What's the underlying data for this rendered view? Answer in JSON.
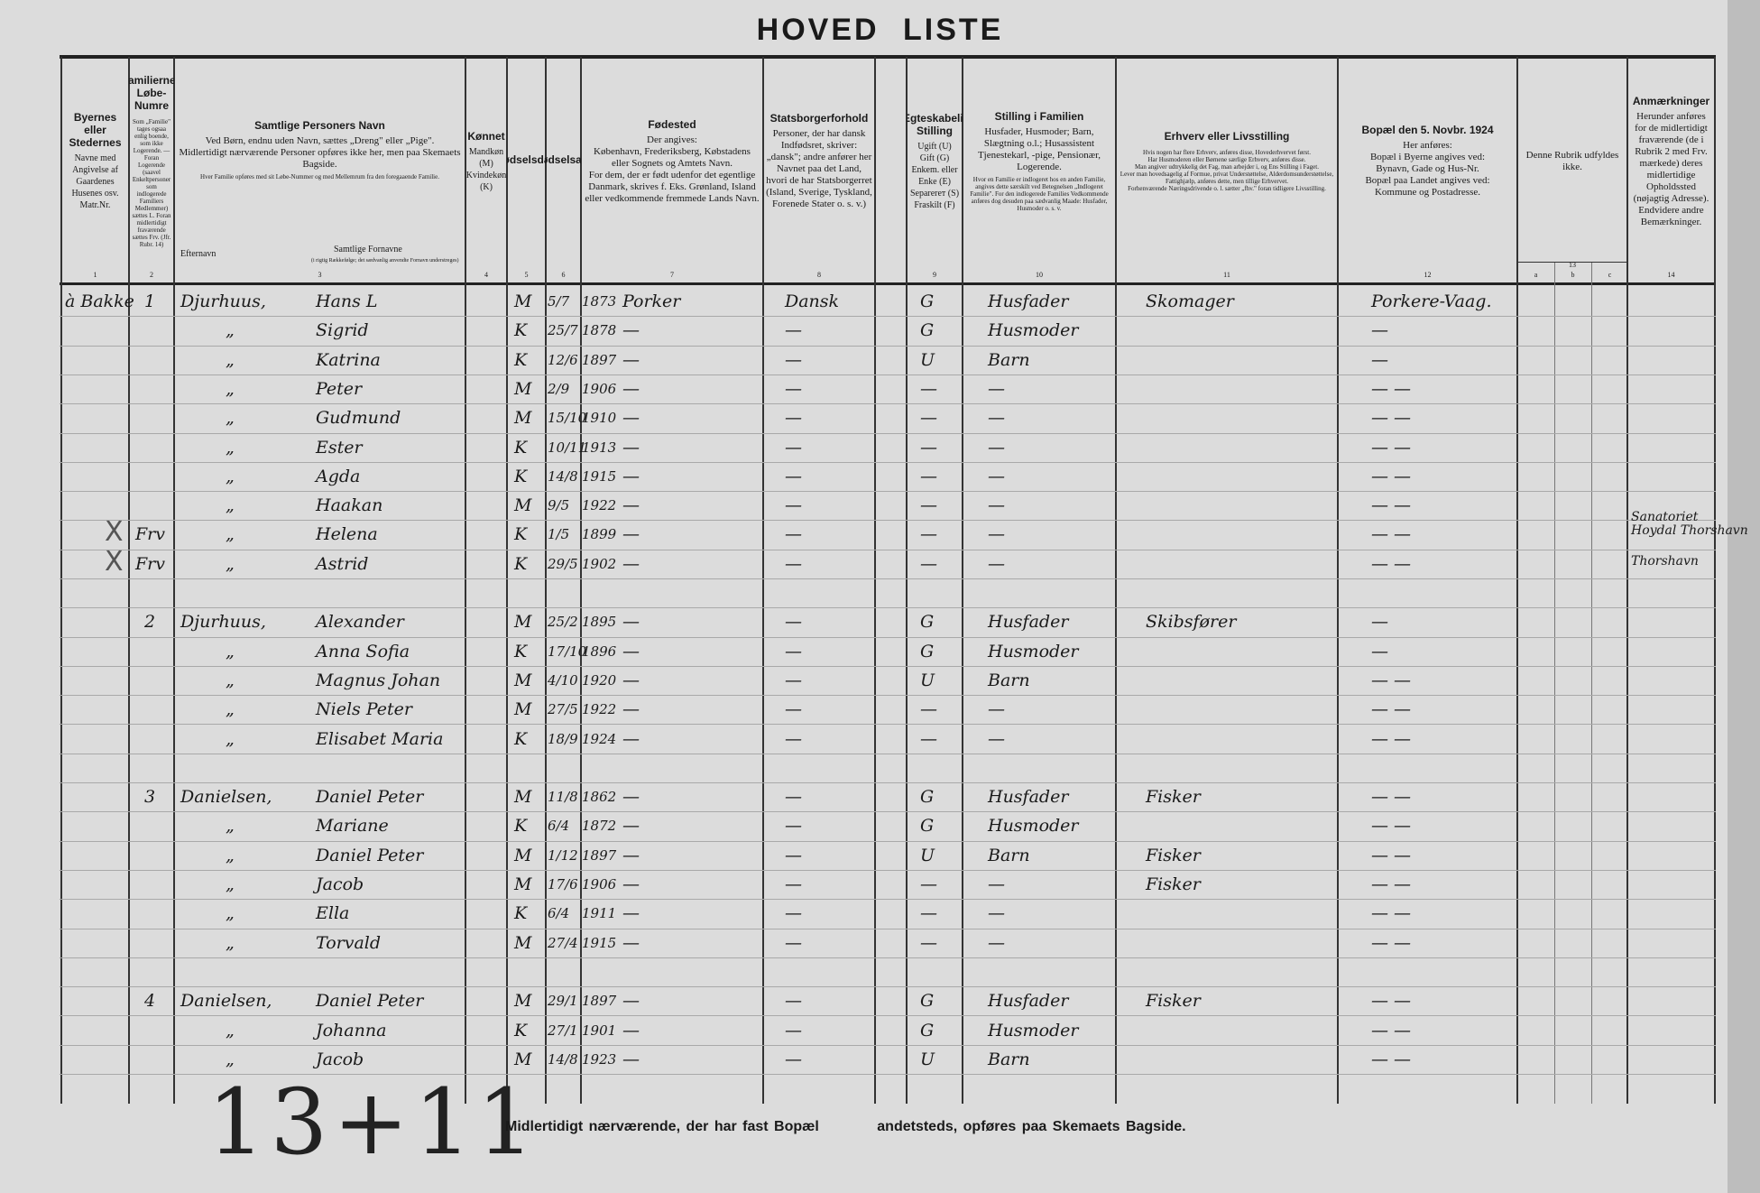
{
  "title": "HOVED LISTE",
  "columns": [
    {
      "num": "1",
      "title": "Byernes eller Stedernes",
      "body": "Navne med Angivelse af Gaardenes Husenes osv.\nMatr.Nr.",
      "small": ""
    },
    {
      "num": "2",
      "title": "Familiernes Løbe-Numre",
      "body": "",
      "small": "Som „Familie\" tages ogsaa enlig boende, som ikke Logerende. — Foran Logerende (saavel Enkeltpersoner som indlogerede Familiers Medlemmer) sættes L. Foran midlertidigt fraværende sættes Frv. (Jfr. Rubr. 14)"
    },
    {
      "num": "3",
      "title": "Samtlige Personers Navn",
      "body": "Ved Børn, endnu uden Navn, sættes „Dreng\" eller „Pige\".\nMidlertidigt nærværende Personer opføres ikke her, men paa Skemaets Bagside.",
      "small": "Hver Familie opføres med sit Løbe-Nummer og med Mellemrum fra den foregaaende Familie."
    },
    {
      "num": "4",
      "title": "Kønnet",
      "body": "Mandkøn (M)\nKvindekøn (K)",
      "small": ""
    },
    {
      "num": "5",
      "title": "Fødselsdag",
      "body": "",
      "small": ""
    },
    {
      "num": "6",
      "title": "Fødselsaar",
      "body": "",
      "small": ""
    },
    {
      "num": "7",
      "title": "Fødested",
      "body": "Der angives:\nKøbenhavn, Frederiksberg, Købstadens eller Sognets og Amtets Navn.\nFor dem, der er født udenfor det egentlige Danmark, skrives f. Eks. Grønland, Island eller vedkommende fremmede Lands Navn.",
      "small": ""
    },
    {
      "num": "8",
      "title": "Statsborgerforhold",
      "body": "Personer, der har dansk Indfødsret, skriver: „dansk\"; andre anfører her Navnet paa det Land, hvori de har Statsborgerret (Island, Sverige, Tyskland, Forenede Stater o. s. v.)",
      "small": ""
    },
    {
      "num": "",
      "title": "",
      "body": "",
      "small": ""
    },
    {
      "num": "9",
      "title": "Ægteskabelig Stilling",
      "body": "Ugift (U)\nGift (G)\nEnkem. eller Enke (E)\nSeparerет (S)\nFraskilt (F)",
      "small": ""
    },
    {
      "num": "10",
      "title": "Stilling i Familien",
      "body": "Husfader, Husmoder; Barn, Slægtning o.l.; Husassistent Tjenestekarl, -pige, Pensionær, Logerende.",
      "small": "Hvor en Familie er indlogeret hos en anden Familie, angives dette særskilt ved Betegnelsen „Indlogeret Familie\". For den indlogerede Families Vedkommende anføres dog desuden paa sædvanlig Maade: Husfader, Husmoder o. s. v."
    },
    {
      "num": "11",
      "title": "Erhverv eller Livsstilling",
      "body": "",
      "small": "Hvis nogen har flere Erhverv, anføres disse, Hovederhvervet først.\nHar Husmoderen eller Børnene særlige Erhverv, anføres disse.\nMan angiver udtrykkelig det Fag, man arbejder i, og Ens Stilling i Faget.\nLever man hovedsagelig af Formue, privat Understøttelse, Alderdomsunderstøttelse, Fattighjælp, anføres dette, men tillige Erhvervet.\nForhenværende Næringsdrivende o. l. sætter „fhv.\" foran tidligere Livsstilling."
    },
    {
      "num": "12",
      "title": "Bopæl den 5. Novbr. 1924",
      "body": "Her anføres:\nBopæl i Byerne angives ved:\nBynavn, Gade og Hus-Nr.\nBopæl paa Landet angives ved:\nKommune og Postadresse.",
      "small": ""
    },
    {
      "num": "13",
      "title": "",
      "body": "Denne Rubrik udfyldes ikke.",
      "small": "",
      "sub": [
        "a",
        "b",
        "c"
      ]
    },
    {
      "num": "14",
      "title": "Anmærkninger",
      "body": "Herunder anføres for de midlertidigt fraværende (de i Rubrik 2 med Frv. mærkede) deres midlertidige Opholdssted (nøjagtig Adresse). Endvidere andre Bemærkninger.",
      "small": ""
    }
  ],
  "name_subheaders": {
    "surname": "Efternavn",
    "given": "Samtlige Fornavne",
    "given_note": "(i rigtig Rækkefølge; det sædvanlig anvendte Fornavn understreges)"
  },
  "rows": [
    {
      "place": "à Bakke",
      "fam": "1",
      "surname": "Djurhuus,",
      "given": "Hans L",
      "sex": "M",
      "day": "5/7",
      "year": "1873",
      "born": "Porker",
      "citizen": "Dansk",
      "marital": "G",
      "position": "Husfader",
      "occupation": "Skomager",
      "residence": "Porkere-Vaag."
    },
    {
      "surname": "„",
      "given": "Sigrid",
      "sex": "K",
      "day": "25/7",
      "year": "1878",
      "born": "—",
      "citizen": "—",
      "marital": "G",
      "position": "Husmoder",
      "residence": "—"
    },
    {
      "surname": "„",
      "given": "Katrina",
      "sex": "K",
      "day": "12/6",
      "year": "1897",
      "born": "—",
      "citizen": "—",
      "marital": "U",
      "position": "Barn",
      "residence": "—"
    },
    {
      "surname": "„",
      "given": "Peter",
      "sex": "M",
      "day": "2/9",
      "year": "1906",
      "born": "—",
      "citizen": "—",
      "marital": "—",
      "position": "—",
      "residence": "—   —"
    },
    {
      "surname": "„",
      "given": "Gudmund",
      "sex": "M",
      "day": "15/10",
      "year": "1910",
      "born": "—",
      "citizen": "—",
      "marital": "—",
      "position": "—",
      "residence": "—   —"
    },
    {
      "surname": "„",
      "given": "Ester",
      "sex": "K",
      "day": "10/11",
      "year": "1913",
      "born": "—",
      "citizen": "—",
      "marital": "—",
      "position": "—",
      "residence": "—   —"
    },
    {
      "surname": "„",
      "given": "Agda",
      "sex": "K",
      "day": "14/8",
      "year": "1915",
      "born": "—",
      "citizen": "—",
      "marital": "—",
      "position": "—",
      "residence": "—   —"
    },
    {
      "surname": "„",
      "given": "Haakan",
      "sex": "M",
      "day": "9/5",
      "year": "1922",
      "born": "—",
      "citizen": "—",
      "marital": "—",
      "position": "—",
      "residence": "—   —"
    },
    {
      "xmark": "X",
      "fam": "Frv",
      "surname": "„",
      "given": "Helena",
      "sex": "K",
      "day": "1/5",
      "year": "1899",
      "born": "—",
      "citizen": "—",
      "marital": "—",
      "position": "—",
      "residence": "—   —",
      "remark": "Sanatoriet\nHoydal Thorshavn"
    },
    {
      "xmark": "X",
      "fam": "Frv",
      "surname": "„",
      "given": "Astrid",
      "sex": "K",
      "day": "29/5",
      "year": "1902",
      "born": "—",
      "citizen": "—",
      "marital": "—",
      "position": "—",
      "residence": "—   —",
      "remark": "Thorshavn"
    },
    {},
    {
      "fam": "2",
      "surname": "Djurhuus,",
      "given": "Alexander",
      "sex": "M",
      "day": "25/2",
      "year": "1895",
      "born": "—",
      "citizen": "—",
      "marital": "G",
      "position": "Husfader",
      "occupation": "Skibsfører",
      "residence": "—"
    },
    {
      "surname": "„",
      "given": "Anna Sofia",
      "sex": "K",
      "day": "17/10",
      "year": "1896",
      "born": "—",
      "citizen": "—",
      "marital": "G",
      "position": "Husmoder",
      "residence": "—"
    },
    {
      "surname": "„",
      "given": "Magnus Johan",
      "sex": "M",
      "day": "4/10",
      "year": "1920",
      "born": "—",
      "citizen": "—",
      "marital": "U",
      "position": "Barn",
      "residence": "—   —"
    },
    {
      "surname": "„",
      "given": "Niels Peter",
      "sex": "M",
      "day": "27/5",
      "year": "1922",
      "born": "—",
      "citizen": "—",
      "marital": "—",
      "position": "—",
      "residence": "—   —"
    },
    {
      "surname": "„",
      "given": "Elisabet Maria",
      "sex": "K",
      "day": "18/9",
      "year": "1924",
      "born": "—",
      "citizen": "—",
      "marital": "—",
      "position": "—",
      "residence": "—   —"
    },
    {},
    {
      "fam": "3",
      "surname": "Danielsen,",
      "given": "Daniel Peter",
      "sex": "M",
      "day": "11/8",
      "year": "1862",
      "born": "—",
      "citizen": "—",
      "marital": "G",
      "position": "Husfader",
      "occupation": "Fisker",
      "residence": "—   —"
    },
    {
      "surname": "„",
      "given": "Mariane",
      "sex": "K",
      "day": "6/4",
      "year": "1872",
      "born": "—",
      "citizen": "—",
      "marital": "G",
      "position": "Husmoder",
      "residence": "—   —"
    },
    {
      "surname": "„",
      "given": "Daniel Peter",
      "sex": "M",
      "day": "1/12",
      "year": "1897",
      "born": "—",
      "citizen": "—",
      "marital": "U",
      "position": "Barn",
      "occupation": "Fisker",
      "residence": "—   —"
    },
    {
      "surname": "„",
      "given": "Jacob",
      "sex": "M",
      "day": "17/6",
      "year": "1906",
      "born": "—",
      "citizen": "—",
      "marital": "—",
      "position": "—",
      "occupation": "Fisker",
      "residence": "—   —"
    },
    {
      "surname": "„",
      "given": "Ella",
      "sex": "K",
      "day": "6/4",
      "year": "1911",
      "born": "—",
      "citizen": "—",
      "marital": "—",
      "position": "—",
      "residence": "—   —"
    },
    {
      "surname": "„",
      "given": "Torvald",
      "sex": "M",
      "day": "27/4",
      "year": "1915",
      "born": "—",
      "citizen": "—",
      "marital": "—",
      "position": "—",
      "residence": "—   —"
    },
    {},
    {
      "fam": "4",
      "surname": "Danielsen,",
      "given": "Daniel Peter",
      "sex": "M",
      "day": "29/1",
      "year": "1897",
      "born": "—",
      "citizen": "—",
      "marital": "G",
      "position": "Husfader",
      "occupation": "Fisker",
      "residence": "—   —"
    },
    {
      "surname": "„",
      "given": "Johanna",
      "sex": "K",
      "day": "27/1",
      "year": "1901",
      "born": "—",
      "citizen": "—",
      "marital": "G",
      "position": "Husmoder",
      "residence": "—   —"
    },
    {
      "surname": "„",
      "given": "Jacob",
      "sex": "M",
      "day": "14/8",
      "year": "1923",
      "born": "—",
      "citizen": "—",
      "marital": "U",
      "position": "Barn",
      "residence": "—   —"
    }
  ],
  "tally": "13+11",
  "footer": "Midlertidigt nærværende, der har fast Bopæl          andetsteds, opføres paa Skemaets Bagside."
}
